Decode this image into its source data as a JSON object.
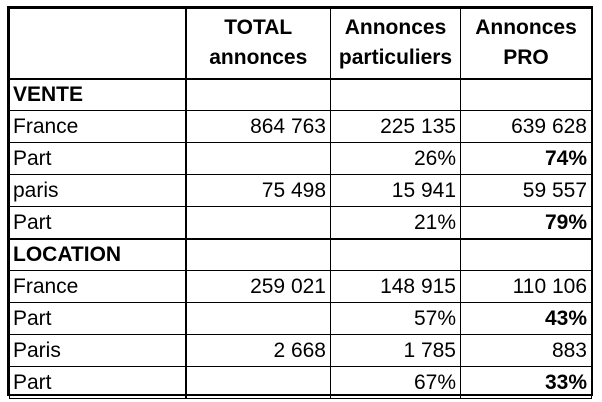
{
  "columns": {
    "label": "",
    "total": "TOTAL annonces",
    "particuliers": "Annonces particuliers",
    "pro": "Annonces PRO"
  },
  "sections": {
    "vente": {
      "title": "VENTE",
      "rows": [
        {
          "label": "France",
          "total": "864 763",
          "particuliers": "225 135",
          "pro": "639 628"
        },
        {
          "label": "Part",
          "total": "",
          "particuliers": "26%",
          "pro": "74%"
        },
        {
          "label": "paris",
          "total": "75 498",
          "particuliers": "15 941",
          "pro": "59 557"
        },
        {
          "label": "Part",
          "total": "",
          "particuliers": "21%",
          "pro": "79%"
        }
      ]
    },
    "location": {
      "title": "LOCATION",
      "rows": [
        {
          "label": "France",
          "total": "259 021",
          "particuliers": "148 915",
          "pro": "110 106"
        },
        {
          "label": "Part",
          "total": "",
          "particuliers": "57%",
          "pro": "43%"
        },
        {
          "label": "Paris",
          "total": "2 668",
          "particuliers": "1 785",
          "pro": "883"
        },
        {
          "label": "Part",
          "total": "",
          "particuliers": "67%",
          "pro": "33%"
        }
      ]
    }
  }
}
